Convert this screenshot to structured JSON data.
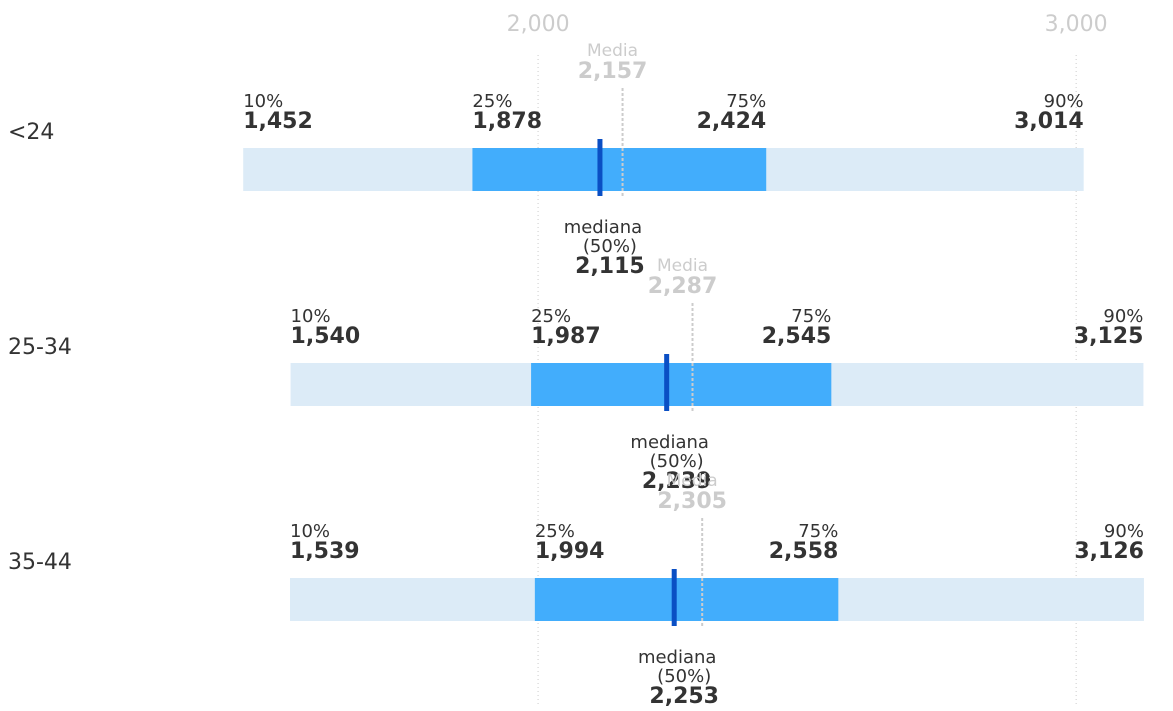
{
  "chart_data": {
    "type": "range",
    "categories": [
      "<24",
      "25-34",
      "35-44"
    ],
    "xlim": [
      1000,
      3180
    ],
    "xticks": [
      {
        "value": 2000,
        "label": "2,000"
      },
      {
        "value": 3000,
        "label": "3,000"
      }
    ],
    "grid": true,
    "series": [
      {
        "name": "10%",
        "role": "p10",
        "values": [
          1452,
          1540,
          1539
        ],
        "value_labels": [
          "1,452",
          "1,540",
          "1,539"
        ]
      },
      {
        "name": "25%",
        "role": "p25",
        "values": [
          1878,
          1987,
          1994
        ],
        "value_labels": [
          "1,878",
          "1,987",
          "1,994"
        ]
      },
      {
        "name": "mediana",
        "subname": "(50%)",
        "role": "median",
        "color": "#0a4fc4",
        "values": [
          2115,
          2239,
          2253
        ],
        "value_labels": [
          "2,115",
          "2,239",
          "2,253"
        ]
      },
      {
        "name": "75%",
        "role": "p75",
        "values": [
          2424,
          2545,
          2558
        ],
        "value_labels": [
          "2,424",
          "2,545",
          "2,558"
        ]
      },
      {
        "name": "90%",
        "role": "p90",
        "values": [
          3014,
          3125,
          3126
        ],
        "value_labels": [
          "3,014",
          "3,125",
          "3,126"
        ]
      },
      {
        "name": "Media",
        "role": "mean",
        "color": "#cccccc",
        "values": [
          2157,
          2287,
          2305
        ],
        "value_labels": [
          "2,157",
          "2,287",
          "2,305"
        ]
      }
    ],
    "outer_color": "#dcebf7",
    "inner_color": "#42adfc"
  }
}
